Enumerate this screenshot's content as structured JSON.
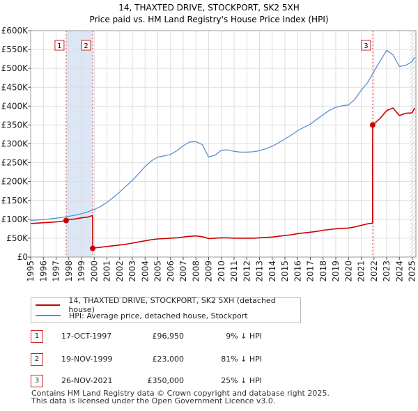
{
  "chart_data": {
    "type": "line",
    "title": "14, THAXTED DRIVE, STOCKPORT, SK2 5XH",
    "subtitle": "Price paid vs. HM Land Registry's House Price Index (HPI)",
    "xlim": [
      1995,
      2025.3
    ],
    "ylim": [
      0,
      600000
    ],
    "y_ticks": [
      0,
      50000,
      100000,
      150000,
      200000,
      250000,
      300000,
      350000,
      400000,
      450000,
      500000,
      550000,
      600000
    ],
    "y_tick_labels": [
      "£0",
      "£50K",
      "£100K",
      "£150K",
      "£200K",
      "£250K",
      "£300K",
      "£350K",
      "£400K",
      "£450K",
      "£500K",
      "£550K",
      "£600K"
    ],
    "x_ticks": [
      1995,
      1996,
      1997,
      1998,
      1999,
      2000,
      2001,
      2002,
      2003,
      2004,
      2005,
      2006,
      2007,
      2008,
      2009,
      2010,
      2011,
      2012,
      2013,
      2014,
      2015,
      2016,
      2017,
      2018,
      2019,
      2020,
      2021,
      2022,
      2023,
      2024,
      2025
    ],
    "x_tick_labels": [
      "1995",
      "1996",
      "1997",
      "1998",
      "1999",
      "2000",
      "2001",
      "2002",
      "2003",
      "2004",
      "2005",
      "2006",
      "2007",
      "2008",
      "2009",
      "2010",
      "2011",
      "2012",
      "2013",
      "2014",
      "2015",
      "2016",
      "2017",
      "2018",
      "2019",
      "2020",
      "2021",
      "2022",
      "2023",
      "2024",
      "2025"
    ],
    "grid": true,
    "series": [
      {
        "name": "HPI: Average price, detached house, Stockport",
        "color": "#5b8fcf",
        "x": [
          1995.0,
          1995.5,
          1996.0,
          1996.5,
          1997.0,
          1997.5,
          1998.0,
          1998.5,
          1999.0,
          1999.5,
          2000.0,
          2000.5,
          2001.0,
          2001.5,
          2002.0,
          2002.5,
          2003.0,
          2003.5,
          2004.0,
          2004.5,
          2005.0,
          2005.5,
          2006.0,
          2006.5,
          2007.0,
          2007.5,
          2008.0,
          2008.5,
          2009.0,
          2009.5,
          2010.0,
          2010.5,
          2011.0,
          2011.5,
          2012.0,
          2012.5,
          2013.0,
          2013.5,
          2014.0,
          2014.5,
          2015.0,
          2015.5,
          2016.0,
          2016.5,
          2017.0,
          2017.5,
          2018.0,
          2018.5,
          2019.0,
          2019.5,
          2020.0,
          2020.5,
          2021.0,
          2021.5,
          2022.0,
          2022.5,
          2023.0,
          2023.5,
          2024.0,
          2024.5,
          2025.0,
          2025.2
        ],
        "y": [
          97000,
          98000,
          99000,
          101000,
          103000,
          105000,
          108000,
          111000,
          115000,
          120000,
          126000,
          134000,
          145000,
          158000,
          172000,
          188000,
          203000,
          221000,
          240000,
          255000,
          265000,
          268000,
          272000,
          282000,
          295000,
          305000,
          306000,
          298000,
          265000,
          270000,
          283000,
          284000,
          280000,
          278000,
          278000,
          279000,
          282000,
          287000,
          294000,
          303000,
          313000,
          323000,
          335000,
          344000,
          352000,
          365000,
          377000,
          389000,
          397000,
          401000,
          403000,
          418000,
          442000,
          462000,
          492000,
          520000,
          548000,
          536000,
          505000,
          508000,
          518000,
          530000
        ]
      },
      {
        "name": "14, THAXTED DRIVE, STOCKPORT, SK2 5XH (detached house)",
        "color": "#cc0000",
        "x": [
          1995.0,
          1995.5,
          1996.0,
          1996.5,
          1997.0,
          1997.5,
          1997.79,
          1998.0,
          1998.5,
          1999.0,
          1999.5,
          1999.87,
          1999.88,
          2000.0,
          2000.5,
          2001.0,
          2001.5,
          2002.0,
          2002.5,
          2003.0,
          2003.5,
          2004.0,
          2004.5,
          2005.0,
          2005.5,
          2006.0,
          2006.5,
          2007.0,
          2007.5,
          2008.0,
          2008.5,
          2009.0,
          2009.5,
          2010.0,
          2010.5,
          2011.0,
          2011.5,
          2012.0,
          2012.5,
          2013.0,
          2013.5,
          2014.0,
          2014.5,
          2015.0,
          2015.5,
          2016.0,
          2016.5,
          2017.0,
          2017.5,
          2018.0,
          2018.5,
          2019.0,
          2019.5,
          2020.0,
          2020.5,
          2021.0,
          2021.5,
          2021.89,
          2021.9,
          2022.0,
          2022.5,
          2023.0,
          2023.5,
          2024.0,
          2024.5,
          2025.0,
          2025.2
        ],
        "y": [
          89000,
          90000,
          91000,
          92000,
          93000,
          95000,
          96950,
          99000,
          101000,
          104000,
          106000,
          110000,
          23000,
          24000,
          26000,
          28000,
          30000,
          32000,
          34000,
          37000,
          40000,
          43000,
          46000,
          48000,
          49000,
          50000,
          51000,
          53000,
          55000,
          56000,
          54000,
          49000,
          50000,
          51000,
          51000,
          50000,
          50000,
          50000,
          50000,
          51000,
          52000,
          53000,
          55000,
          57000,
          59000,
          62000,
          64000,
          66000,
          68000,
          71000,
          73000,
          75000,
          76000,
          77000,
          80000,
          84000,
          88000,
          90000,
          350000,
          353000,
          368000,
          388000,
          395000,
          375000,
          381000,
          382000,
          395000
        ]
      }
    ],
    "sales": [
      {
        "num": "1",
        "x": 1997.79,
        "price": 96950
      },
      {
        "num": "2",
        "x": 1999.88,
        "price": 23000
      },
      {
        "num": "3",
        "x": 2021.9,
        "price": 350000
      }
    ],
    "shaded_ranges": [
      [
        1997.79,
        1999.88
      ]
    ],
    "hatched_from": 2024.8
  },
  "legend": {
    "property": "14, THAXTED DRIVE, STOCKPORT, SK2 5XH (detached house)",
    "hpi": "HPI: Average price, detached house, Stockport"
  },
  "sales_table": [
    {
      "num": "1",
      "date": "17-OCT-1997",
      "price": "£96,950",
      "hpi": "9% ↓ HPI"
    },
    {
      "num": "2",
      "date": "19-NOV-1999",
      "price": "£23,000",
      "hpi": "81% ↓ HPI"
    },
    {
      "num": "3",
      "date": "26-NOV-2021",
      "price": "£350,000",
      "hpi": "25% ↓ HPI"
    }
  ],
  "footer": {
    "line1": "Contains HM Land Registry data © Crown copyright and database right 2025.",
    "line2": "This data is licensed under the Open Government Licence v3.0."
  },
  "colors": {
    "property": "#cc0000",
    "hpi": "#5b8fcf",
    "shade": "#dde6f5",
    "grid": "#dddddd"
  }
}
